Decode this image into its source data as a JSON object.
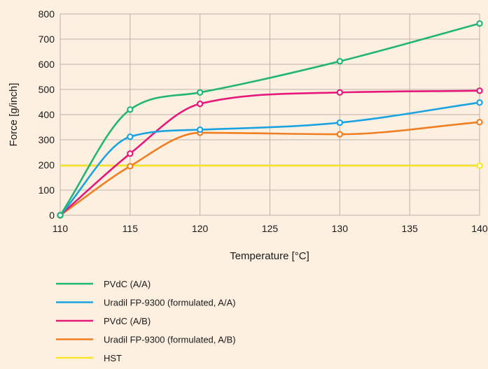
{
  "chart_data": {
    "type": "line",
    "xlabel": "Temperature [°C]",
    "ylabel": "Force [g/inch]",
    "xlim": [
      110,
      140
    ],
    "ylim": [
      0,
      800
    ],
    "x_ticks": [
      "110",
      "115",
      "120",
      "125",
      "130",
      "135",
      "140"
    ],
    "y_ticks": [
      "0",
      "100",
      "200",
      "300",
      "400",
      "500",
      "600",
      "700",
      "800"
    ],
    "grid": true,
    "legend_position": "bottom",
    "x": [
      110,
      115,
      120,
      130,
      140
    ],
    "series": [
      {
        "name": "PVdC (A/A)",
        "color": "#22b573",
        "values": [
          0,
          420,
          488,
          612,
          762
        ]
      },
      {
        "name": "Uradil FP-9300 (formulated, A/A)",
        "color": "#1aa3e0",
        "values": [
          0,
          312,
          340,
          368,
          448
        ]
      },
      {
        "name": "PVdC (A/B)",
        "color": "#e6197a",
        "values": [
          0,
          245,
          443,
          488,
          495
        ]
      },
      {
        "name": "Uradil FP-9300 (formulated, A/B)",
        "color": "#f07e22",
        "values": [
          0,
          195,
          328,
          322,
          370
        ]
      },
      {
        "name": "HST",
        "color": "#f5e62a",
        "values": [
          197,
          197,
          197,
          197,
          197
        ]
      }
    ]
  }
}
